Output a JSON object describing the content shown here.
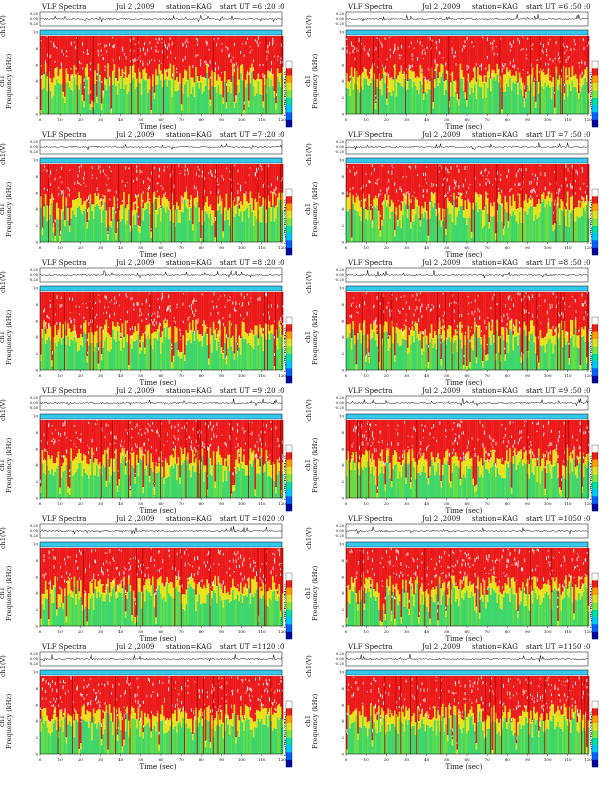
{
  "common": {
    "title": "VLF Spectra",
    "date": "Jul 2 ,2009",
    "station": "station=KAG",
    "ch1_label": "ch1(V)",
    "freq_label": "ch1\nFrequency (kHz)",
    "colorbar_label": "log(PSD(V²/Hz))",
    "xlabel": "Time (sec)"
  },
  "panels": [
    {
      "start": "start  UT =6 :20 :0"
    },
    {
      "start": "start  UT =6 :50 :0"
    },
    {
      "start": "start  UT =7 :20 :0"
    },
    {
      "start": "start  UT =7 :50 :0"
    },
    {
      "start": "start  UT =8 :20 :0"
    },
    {
      "start": "start  UT =8 :50 :0"
    },
    {
      "start": "start  UT =9 :20 :0"
    },
    {
      "start": "start  UT =9 :50 :0"
    },
    {
      "start": "start  UT =1020 :0"
    },
    {
      "start": "start  UT =1050 :0"
    },
    {
      "start": "start  UT =1120 :0"
    },
    {
      "start": "start  UT =1150 :0"
    }
  ],
  "chart_data": {
    "type": "heatmap",
    "layout": "6 rows x 2 columns of spectrogram panels",
    "x_axis": {
      "label": "Time (sec)",
      "range": [
        0,
        120
      ],
      "ticks": [
        0,
        10,
        20,
        30,
        40,
        50,
        60,
        70,
        80,
        90,
        100,
        110,
        120
      ]
    },
    "y_axis_spectrogram": {
      "label": "Frequency (kHz)",
      "range": [
        0,
        10
      ],
      "ticks": [
        0,
        2,
        4,
        6,
        8,
        10
      ]
    },
    "y_axis_waveform": {
      "label": "ch1(V)",
      "ticks": [
        "0.20",
        "0.00",
        "-0.20"
      ]
    },
    "colorbar": {
      "label": "log(PSD(V²/Hz))",
      "colors": [
        "#0000a0",
        "#0060ff",
        "#00c8ff",
        "#00e0a0",
        "#7fe640",
        "#dfe020",
        "#ff9a00",
        "#ee1c1c",
        "#ffffff"
      ]
    },
    "palette": {
      "blue_band": "#33c8f0",
      "green": "#3fd66a",
      "yellow": "#e8e21e",
      "red": "#ec1b1b",
      "white": "#ffffff"
    }
  }
}
